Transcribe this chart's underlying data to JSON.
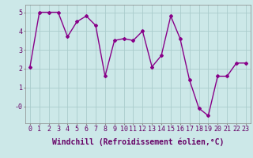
{
  "x": [
    0,
    1,
    2,
    3,
    4,
    5,
    6,
    7,
    8,
    9,
    10,
    11,
    12,
    13,
    14,
    15,
    16,
    17,
    18,
    19,
    20,
    21,
    22,
    23
  ],
  "y": [
    2.1,
    5.0,
    5.0,
    5.0,
    3.7,
    4.5,
    4.8,
    4.3,
    1.6,
    3.5,
    3.6,
    3.5,
    4.0,
    2.1,
    2.7,
    4.8,
    3.6,
    1.4,
    -0.1,
    -0.5,
    1.6,
    1.6,
    2.3,
    2.3
  ],
  "line_color": "#880088",
  "marker": "D",
  "markersize": 2,
  "linewidth": 1.0,
  "xlabel": "Windchill (Refroidissement éolien,°C)",
  "xlabel_fontsize": 7,
  "bg_color": "#cce8e8",
  "grid_color": "#aacccc",
  "tick_fontsize": 6,
  "ylim": [
    -0.9,
    5.4
  ],
  "yticks": [
    0,
    1,
    2,
    3,
    4,
    5
  ],
  "ytick_labels": [
    "-0",
    "1",
    "2",
    "3",
    "4",
    "5"
  ]
}
